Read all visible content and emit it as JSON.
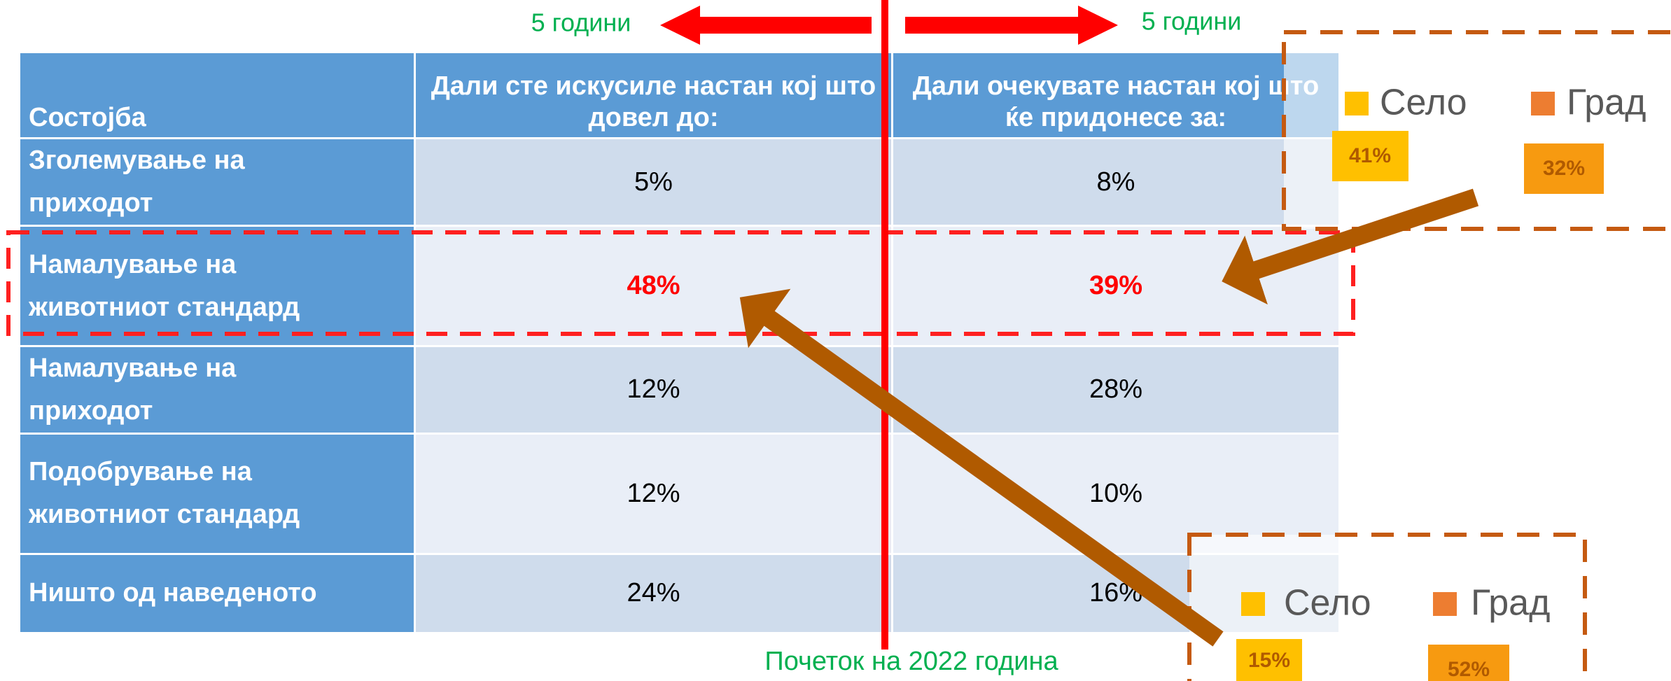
{
  "table": {
    "header": [
      "Состојба",
      "Дали сте искусиле настан кој што довел до:",
      "Дали очекувате настан кој што ќе придонесе за:"
    ],
    "rows": [
      [
        "Зголемување на приходот",
        "5%",
        "8%"
      ],
      [
        "Намалување на животниот стандард",
        "48%",
        "39%"
      ],
      [
        "Намалување на приходот",
        "12%",
        "28%"
      ],
      [
        "Подобрување на животниот стандард",
        "12%",
        "10%"
      ],
      [
        "Ништо од наведеното",
        "24%",
        "16%"
      ]
    ]
  },
  "arrow_labels": {
    "left": "5 години",
    "right": "5 години"
  },
  "caption": "Почеток на 2022 година",
  "legend_top": {
    "items": [
      "Село",
      "Град"
    ],
    "values": [
      "41%",
      "32%"
    ]
  },
  "legend_bottom": {
    "items": [
      "Село",
      "Град"
    ],
    "values": [
      "15%",
      "52%"
    ]
  }
}
